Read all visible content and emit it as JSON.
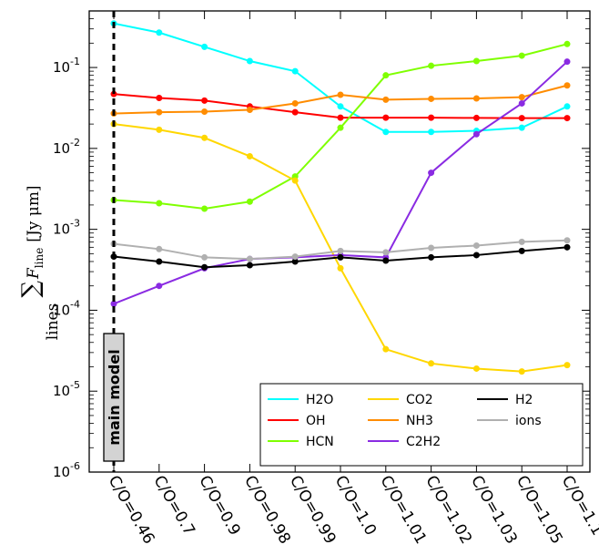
{
  "chart_data": {
    "type": "line",
    "ylabel": "∑ F_line [Jy μm]",
    "ylabel_parts": {
      "sum": "∑",
      "sub": "lines",
      "F": "F",
      "Fsub": "line",
      "unit": "[Jy μm]"
    },
    "yscale": "log",
    "ylim": [
      1e-06,
      0.5
    ],
    "y_ticks": [
      {
        "value": 1e-06,
        "base": "10",
        "exp": "-6"
      },
      {
        "value": 1e-05,
        "base": "10",
        "exp": "-5"
      },
      {
        "value": 0.0001,
        "base": "10",
        "exp": "-4"
      },
      {
        "value": 0.001,
        "base": "10",
        "exp": "-3"
      },
      {
        "value": 0.01,
        "base": "10",
        "exp": "-2"
      },
      {
        "value": 0.1,
        "base": "10",
        "exp": "-1"
      }
    ],
    "categories": [
      "C/O=0.46",
      "C/O=0.7",
      "C/O=0.9",
      "C/O=0.98",
      "C/O=0.99",
      "C/O=1.0",
      "C/O=1.01",
      "C/O=1.02",
      "C/O=1.03",
      "C/O=1.05",
      "C/O=1.1"
    ],
    "series": [
      {
        "name": "H2O",
        "color": "#00ffff",
        "values": [
          0.35,
          0.27,
          0.18,
          0.12,
          0.09,
          0.033,
          0.016,
          0.016,
          0.0165,
          0.018,
          0.033
        ]
      },
      {
        "name": "OH",
        "color": "#ff0000",
        "values": [
          0.047,
          0.042,
          0.039,
          0.033,
          0.028,
          0.024,
          0.024,
          0.024,
          0.0238,
          0.0237,
          0.0237
        ]
      },
      {
        "name": "HCN",
        "color": "#7fff00",
        "values": [
          0.0023,
          0.0021,
          0.0018,
          0.0022,
          0.0045,
          0.018,
          0.08,
          0.105,
          0.12,
          0.14,
          0.195
        ]
      },
      {
        "name": "CO2",
        "color": "#ffd700",
        "values": [
          0.02,
          0.017,
          0.0135,
          0.008,
          0.004,
          0.00033,
          3.3e-05,
          2.2e-05,
          1.9e-05,
          1.75e-05,
          2.1e-05
        ]
      },
      {
        "name": "NH3",
        "color": "#ff8c00",
        "values": [
          0.027,
          0.028,
          0.0285,
          0.03,
          0.036,
          0.046,
          0.04,
          0.041,
          0.0415,
          0.043,
          0.06
        ]
      },
      {
        "name": "C2H2",
        "color": "#8a2be2",
        "values": [
          0.00012,
          0.0002,
          0.00033,
          0.00043,
          0.00045,
          0.00048,
          0.00045,
          0.005,
          0.015,
          0.036,
          0.118
        ]
      },
      {
        "name": "H2",
        "color": "#000000",
        "values": [
          0.00046,
          0.0004,
          0.00034,
          0.00036,
          0.0004,
          0.00045,
          0.00041,
          0.00045,
          0.00048,
          0.00054,
          0.0006
        ]
      },
      {
        "name": "ions",
        "color": "#b0b0b0",
        "values": [
          0.00066,
          0.00057,
          0.00045,
          0.00043,
          0.00046,
          0.00054,
          0.00052,
          0.00059,
          0.00063,
          0.0007,
          0.00073
        ]
      }
    ],
    "legend": {
      "placement": "lower-right",
      "columns": 3
    },
    "annotation": {
      "text": "main model",
      "category": "C/O=0.46",
      "line_style": "dashed"
    },
    "grid": false
  }
}
